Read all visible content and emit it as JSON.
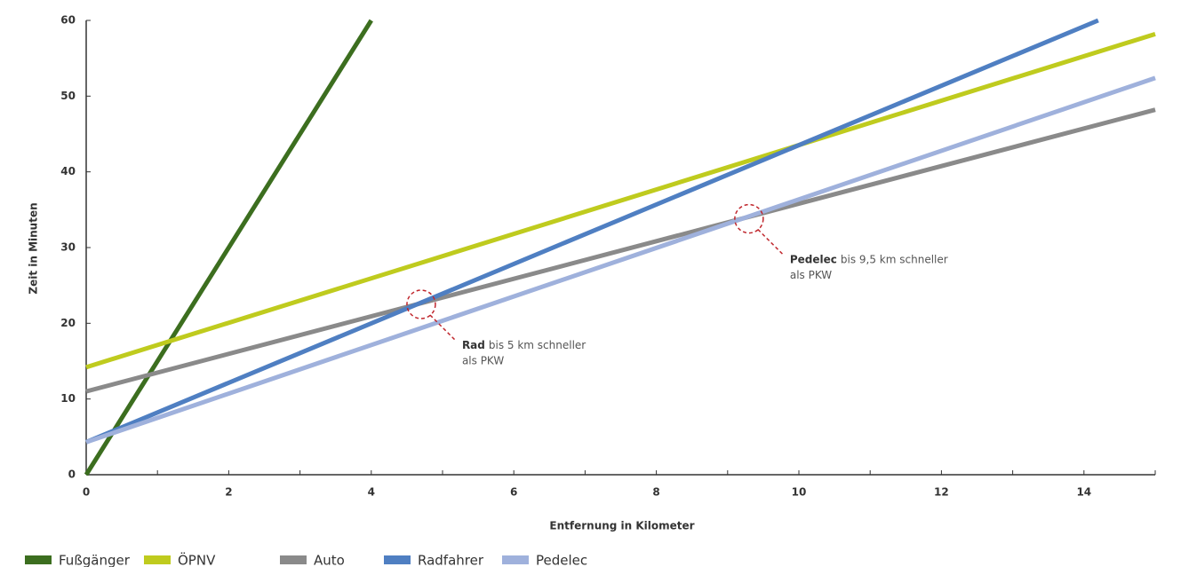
{
  "chart_data": {
    "type": "line",
    "x_label": "Entfernung in Kilometer",
    "y_label": "Zeit in Minuten",
    "xlim": [
      0,
      15
    ],
    "ylim": [
      0,
      60
    ],
    "xticks": [
      0,
      2,
      4,
      6,
      8,
      10,
      12,
      14
    ],
    "xminorticks": [
      1,
      3,
      5,
      7,
      9,
      11,
      13,
      15
    ],
    "yticks": [
      0,
      10,
      20,
      30,
      40,
      50,
      60
    ],
    "series": [
      {
        "name": "Fußgänger",
        "color": "#3c6e1f",
        "x": [
          0,
          4
        ],
        "values": [
          0,
          60
        ]
      },
      {
        "name": "ÖPNV",
        "color": "#bfcb1e",
        "x": [
          0,
          15
        ],
        "values": [
          14.2,
          58.2
        ]
      },
      {
        "name": "Auto",
        "color": "#8a8a8a",
        "x": [
          0,
          15
        ],
        "values": [
          11,
          48.2
        ]
      },
      {
        "name": "Radfahrer",
        "color": "#4f7fc2",
        "x": [
          0,
          14.2
        ],
        "values": [
          4.3,
          60
        ]
      },
      {
        "name": "Pedelec",
        "color": "#9fb1dc",
        "x": [
          0,
          15
        ],
        "values": [
          4.3,
          52.4
        ]
      }
    ],
    "annotations": [
      {
        "x": 4.7,
        "y": 22.5,
        "emphasis": "Rad",
        "lines": [
          "bis 5 km schneller",
          "als PKW"
        ]
      },
      {
        "x": 9.3,
        "y": 33.8,
        "emphasis": "Pedelec",
        "lines": [
          "bis 9,5 km schneller",
          "als PKW"
        ]
      }
    ]
  }
}
